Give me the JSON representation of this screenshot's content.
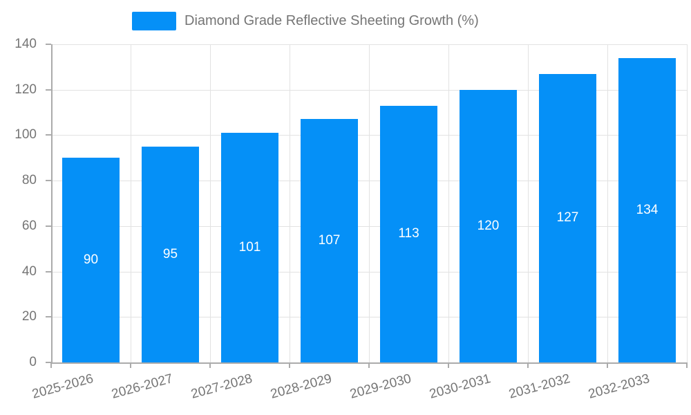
{
  "chart_data": {
    "type": "bar",
    "title": "Diamond Grade Reflective Sheeting Growth (%)",
    "categories": [
      "2025-2026",
      "2026-2027",
      "2027-2028",
      "2028-2029",
      "2029-2030",
      "2030-2031",
      "2031-2032",
      "2032-2033"
    ],
    "values": [
      90,
      95,
      101,
      107,
      113,
      120,
      127,
      134
    ],
    "xlabel": "",
    "ylabel": "",
    "ylim": [
      0,
      140
    ],
    "yticks": [
      0,
      20,
      40,
      60,
      80,
      100,
      120,
      140
    ],
    "grid": true,
    "legend_position": "top-center",
    "value_labels": "inside-center",
    "colors": {
      "bar": "#0590f7",
      "value_label": "#ffffff",
      "axis": "#ababab",
      "gridline": "#e2e2e2",
      "tick_label": "#757575",
      "legend_text": "#757575"
    }
  }
}
